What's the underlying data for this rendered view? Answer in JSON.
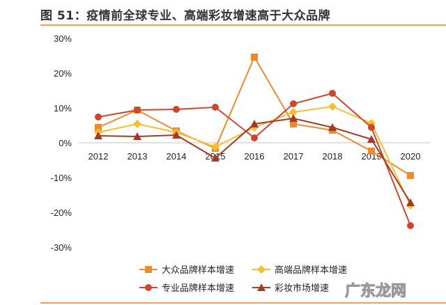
{
  "title": "图 51：疫情前全球专业、高端彩妆增速高于大众品牌",
  "watermark": "广东龙网",
  "chart_data": {
    "type": "line",
    "title": "图 51：疫情前全球专业、高端彩妆增速高于大众品牌",
    "categories": [
      "2012",
      "2013",
      "2014",
      "2015",
      "2016",
      "2017",
      "2018",
      "2019",
      "2020"
    ],
    "ylim": [
      -30,
      30
    ],
    "yticks": [
      30,
      20,
      10,
      0,
      -10,
      -20,
      -30
    ],
    "ytick_labels": [
      "30%",
      "20%",
      "10%",
      "0%",
      "-10%",
      "-20%",
      "-30%"
    ],
    "grid": false,
    "legend": "bottom",
    "series": [
      {
        "name": "大众品牌样本增速",
        "marker": "square",
        "color": "#EB8A2E",
        "values": [
          4.4,
          9.4,
          3.4,
          -1.6,
          24.6,
          5.4,
          3.6,
          -2.4,
          -9.4
        ]
      },
      {
        "name": "高端品牌样本增速",
        "marker": "diamond",
        "color": "#F5C02C",
        "values": [
          3.0,
          5.4,
          3.0,
          -1.2,
          4.4,
          8.8,
          10.4,
          5.6,
          -18.0
        ]
      },
      {
        "name": "专业品牌样本增速",
        "marker": "circle",
        "color": "#D0462A",
        "values": [
          7.4,
          9.4,
          9.6,
          10.2,
          1.4,
          11.2,
          14.2,
          4.4,
          -23.8
        ]
      },
      {
        "name": "彩妆市场增速",
        "marker": "triangle",
        "color": "#A43A26",
        "values": [
          2.0,
          1.8,
          2.2,
          -4.4,
          5.4,
          7.0,
          4.4,
          1.0,
          -17.2
        ]
      }
    ]
  }
}
